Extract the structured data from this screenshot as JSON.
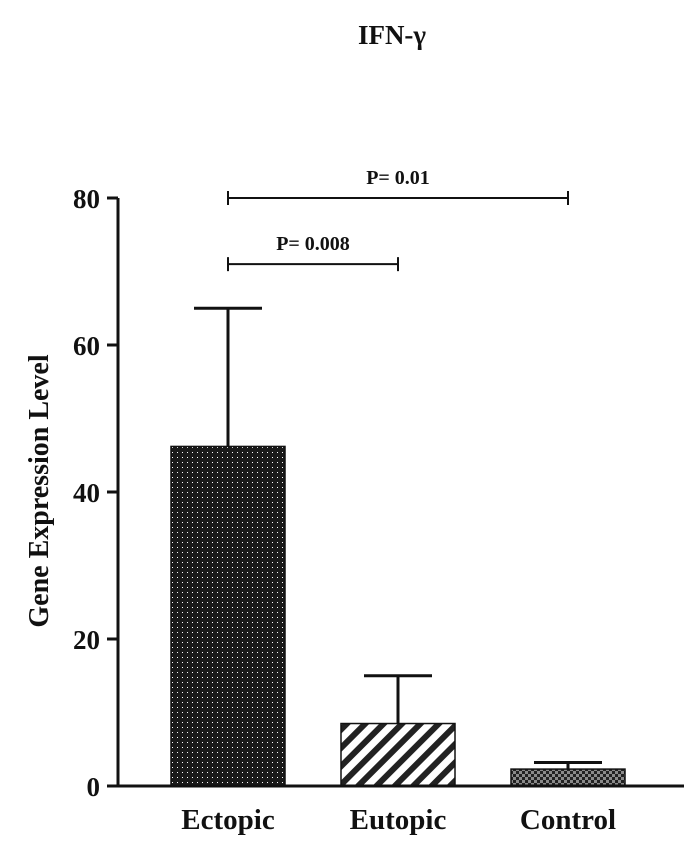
{
  "chart_data": {
    "type": "bar",
    "title": "IFN-γ",
    "xlabel": "",
    "ylabel": "Gene Expression Level",
    "ylim": [
      0,
      80
    ],
    "yticks": [
      "0",
      "20",
      "40",
      "60",
      "80"
    ],
    "categories": [
      "Ectopic",
      "Eutopic",
      "Control"
    ],
    "values": [
      46.2,
      8.5,
      2.3
    ],
    "error_upper": [
      18.8,
      6.5,
      0.9
    ],
    "patterns": [
      "dotted",
      "diagonal-stripes",
      "checkered"
    ],
    "colors": {
      "bar_fill": "#1a1a1a",
      "axis": "#111111",
      "pattern_light": "#ffffff"
    },
    "significance": [
      {
        "from": "Ectopic",
        "to": "Eutopic",
        "label": "P= 0.008",
        "level": 71
      },
      {
        "from": "Ectopic",
        "to": "Control",
        "label": "P= 0.01",
        "level": 80
      }
    ],
    "grid": false,
    "legend": "none"
  }
}
